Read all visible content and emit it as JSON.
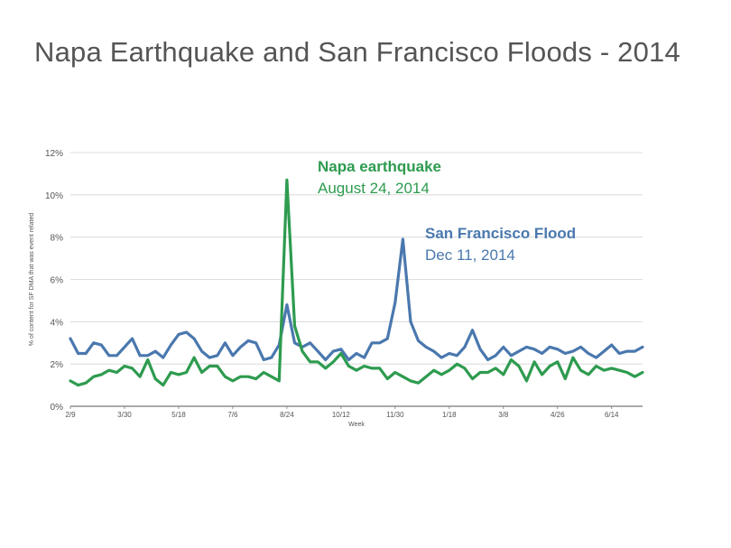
{
  "page": {
    "title": "Napa Earthquake and San Francisco Floods - 2014"
  },
  "chart_data": {
    "type": "line",
    "title": "Napa Earthquake and San Francisco Floods - 2014",
    "xlabel": "Week",
    "ylabel": "% of content for SF DMA that was event related",
    "ylim": [
      0,
      12
    ],
    "yticks": [
      "0%",
      "2%",
      "4%",
      "6%",
      "8%",
      "10%",
      "12%"
    ],
    "xticks": [
      {
        "index": 0,
        "label": "2/9"
      },
      {
        "index": 7,
        "label": "3/30"
      },
      {
        "index": 14,
        "label": "5/18"
      },
      {
        "index": 21,
        "label": "7/6"
      },
      {
        "index": 28,
        "label": "8/24"
      },
      {
        "index": 35,
        "label": "10/12"
      },
      {
        "index": 42,
        "label": "11/30"
      },
      {
        "index": 49,
        "label": "1/18"
      },
      {
        "index": 56,
        "label": "3/8"
      },
      {
        "index": 63,
        "label": "4/26"
      },
      {
        "index": 70,
        "label": "6/14"
      }
    ],
    "grid": "horizontal",
    "series": [
      {
        "name": "San Francisco Flood",
        "color": "#4a78ae",
        "values": [
          3.2,
          2.5,
          2.5,
          3.0,
          2.9,
          2.4,
          2.4,
          2.8,
          3.2,
          2.4,
          2.4,
          2.6,
          2.3,
          2.9,
          3.4,
          3.5,
          3.2,
          2.6,
          2.3,
          2.4,
          3.0,
          2.4,
          2.8,
          3.1,
          3.0,
          2.2,
          2.3,
          2.9,
          4.8,
          3.0,
          2.8,
          3.0,
          2.6,
          2.2,
          2.6,
          2.7,
          2.2,
          2.5,
          2.3,
          3.0,
          3.0,
          3.2,
          4.9,
          7.9,
          4.0,
          3.1,
          2.8,
          2.6,
          2.3,
          2.5,
          2.4,
          2.8,
          3.6,
          2.7,
          2.2,
          2.4,
          2.8,
          2.4,
          2.6,
          2.8,
          2.7,
          2.5,
          2.8,
          2.7,
          2.5,
          2.6,
          2.8,
          2.5,
          2.3,
          2.6,
          2.9,
          2.5,
          2.6,
          2.6,
          2.8
        ]
      },
      {
        "name": "Napa earthquake",
        "color": "#2e9b4f",
        "values": [
          1.2,
          1.0,
          1.1,
          1.4,
          1.5,
          1.7,
          1.6,
          1.9,
          1.8,
          1.4,
          2.2,
          1.3,
          1.0,
          1.6,
          1.5,
          1.6,
          2.3,
          1.6,
          1.9,
          1.9,
          1.4,
          1.2,
          1.4,
          1.4,
          1.3,
          1.6,
          1.4,
          1.2,
          10.7,
          3.8,
          2.6,
          2.1,
          2.1,
          1.8,
          2.1,
          2.5,
          1.9,
          1.7,
          1.9,
          1.8,
          1.8,
          1.3,
          1.6,
          1.4,
          1.2,
          1.1,
          1.4,
          1.7,
          1.5,
          1.7,
          2.0,
          1.8,
          1.3,
          1.6,
          1.6,
          1.8,
          1.5,
          2.2,
          1.9,
          1.2,
          2.1,
          1.5,
          1.9,
          2.1,
          1.3,
          2.3,
          1.7,
          1.5,
          1.9,
          1.7,
          1.8,
          1.7,
          1.6,
          1.4,
          1.6
        ]
      }
    ],
    "annotations": [
      {
        "series": 1,
        "title": "Napa earthquake",
        "subtitle": "August 24, 2014"
      },
      {
        "series": 0,
        "title": "San Francisco Flood",
        "subtitle": "Dec 11, 2014"
      }
    ]
  }
}
